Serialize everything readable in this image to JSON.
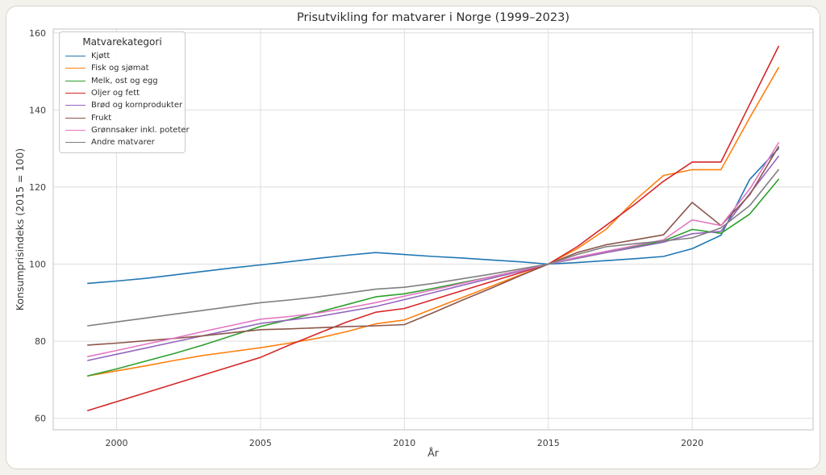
{
  "page": {
    "background_color": "#f4f2ec",
    "card_background": "#ffffff",
    "card_border_color": "#d8d4cb"
  },
  "chart_data": {
    "type": "line",
    "title": "Prisutvikling for matvarer i Norge (1999–2023)",
    "xlabel": "År",
    "ylabel": "Konsumprisindeks (2015 = 100)",
    "x": [
      1999,
      2000,
      2001,
      2002,
      2003,
      2004,
      2005,
      2006,
      2007,
      2008,
      2009,
      2010,
      2011,
      2012,
      2013,
      2014,
      2015,
      2016,
      2017,
      2018,
      2019,
      2020,
      2021,
      2022,
      2023
    ],
    "xticks": [
      2000,
      2005,
      2010,
      2015,
      2020
    ],
    "yticks": [
      60,
      80,
      100,
      120,
      140,
      160
    ],
    "xlim": [
      1997.8,
      2024.2
    ],
    "ylim": [
      57,
      161
    ],
    "grid": true,
    "grid_color": "#dedede",
    "spine_color": "#cdcdcd",
    "text_color": "#3c3c3c",
    "title_color": "#2e2e2e",
    "legend": {
      "title": "Matvarekategori",
      "position": "upper-left"
    },
    "series": [
      {
        "id": "kjott",
        "name": "Kjøtt",
        "color": "#1f77b4",
        "values": [
          95.0,
          95.6,
          96.3,
          97.2,
          98.1,
          99.0,
          99.8,
          100.6,
          101.5,
          102.3,
          103.0,
          102.5,
          102.0,
          101.6,
          101.1,
          100.6,
          100.0,
          100.4,
          100.9,
          101.4,
          102.0,
          104.0,
          107.5,
          122.0,
          130.0
        ]
      },
      {
        "id": "fisk-og-sjomat",
        "name": "Fisk og sjømat",
        "color": "#ff7f0e",
        "values": [
          71.0,
          72.3,
          73.6,
          75.0,
          76.3,
          77.3,
          78.3,
          79.5,
          80.8,
          82.5,
          84.5,
          85.5,
          88.4,
          91.3,
          94.2,
          97.1,
          100.0,
          104.0,
          109.0,
          116.5,
          123.0,
          124.5,
          124.5,
          138.0,
          151.0
        ]
      },
      {
        "id": "melk-ost-og-egg",
        "name": "Melk, ost og egg",
        "color": "#2ca02c",
        "values": [
          71.0,
          72.8,
          74.8,
          76.8,
          79.0,
          81.4,
          83.8,
          85.6,
          87.5,
          89.5,
          91.5,
          92.3,
          93.7,
          95.2,
          96.7,
          98.3,
          100.0,
          101.5,
          103.0,
          104.5,
          106.0,
          109.0,
          108.0,
          113.0,
          122.0
        ]
      },
      {
        "id": "oljer-og-fett",
        "name": "Oljer og fett",
        "color": "#d62728",
        "values": [
          62.0,
          64.3,
          66.6,
          68.9,
          71.2,
          73.5,
          75.8,
          79.0,
          82.0,
          85.0,
          87.5,
          88.5,
          90.8,
          93.1,
          95.4,
          97.7,
          100.0,
          104.5,
          110.0,
          115.5,
          121.5,
          126.5,
          126.5,
          141.5,
          156.5
        ]
      },
      {
        "id": "brod-og-kornprodukter",
        "name": "Brød og kornprodukter",
        "color": "#9467bd",
        "values": [
          75.0,
          76.6,
          78.2,
          79.8,
          81.4,
          83.0,
          84.6,
          85.5,
          86.4,
          87.7,
          89.0,
          90.8,
          92.6,
          94.5,
          96.3,
          98.1,
          100.0,
          101.5,
          103.0,
          104.3,
          105.7,
          107.9,
          108.5,
          118.3,
          128.0
        ]
      },
      {
        "id": "frukt",
        "name": "Frukt",
        "color": "#8c564b",
        "values": [
          79.0,
          79.5,
          80.1,
          80.7,
          81.4,
          82.2,
          83.0,
          83.2,
          83.5,
          83.8,
          84.0,
          84.3,
          87.4,
          90.6,
          93.7,
          96.9,
          100.0,
          103.0,
          105.0,
          106.3,
          107.6,
          116.0,
          110.0,
          118.0,
          130.5
        ]
      },
      {
        "id": "gronnsaker-inkl-poteter",
        "name": "Grønnsaker inkl. poteter",
        "color": "#e377c2",
        "values": [
          76.0,
          77.6,
          79.2,
          80.8,
          82.5,
          84.1,
          85.7,
          86.4,
          87.3,
          88.6,
          90.0,
          91.7,
          93.3,
          95.0,
          96.7,
          98.3,
          100.0,
          101.8,
          103.3,
          104.8,
          106.3,
          111.5,
          110.0,
          119.5,
          131.5
        ]
      },
      {
        "id": "andre-matvarer",
        "name": "Andre matvarer",
        "color": "#7f7f7f",
        "values": [
          84.0,
          85.0,
          86.0,
          87.0,
          88.0,
          89.0,
          90.0,
          90.7,
          91.5,
          92.5,
          93.5,
          94.0,
          95.0,
          96.2,
          97.4,
          98.7,
          100.0,
          102.5,
          104.5,
          105.3,
          106.0,
          106.8,
          109.4,
          115.2,
          124.5
        ]
      }
    ]
  }
}
